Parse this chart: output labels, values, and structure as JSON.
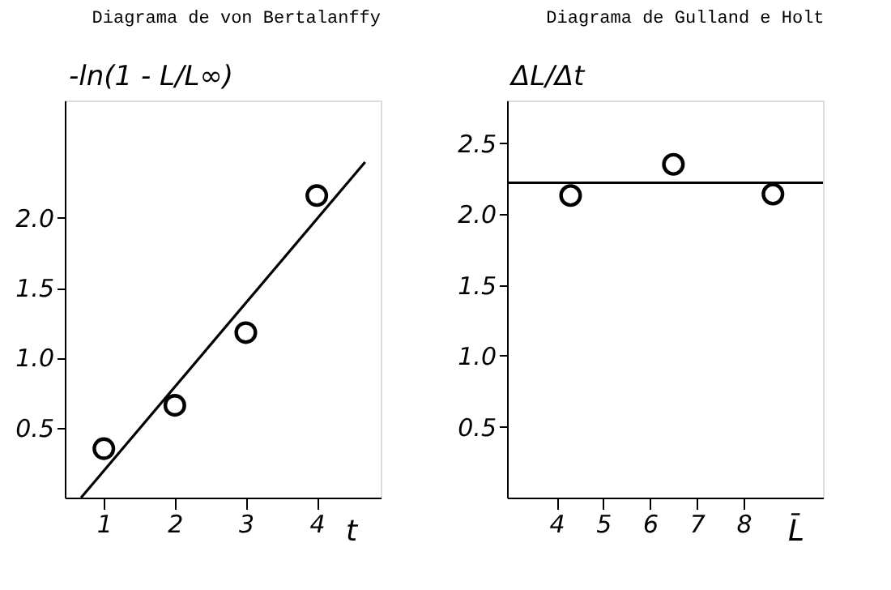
{
  "chart_data": [
    {
      "type": "scatter",
      "title": "Diagrama de von Bertalanffy",
      "xlabel": "t",
      "ylabel": "-ln(1 - L/L∞)",
      "xlim": [
        0.45,
        4.9
      ],
      "ylim": [
        0,
        2.84
      ],
      "xticks": [
        1,
        2,
        3,
        4
      ],
      "yticks": [
        {
          "value": 0.5,
          "label": "0.5"
        },
        {
          "value": 1.0,
          "label": "1.0"
        },
        {
          "value": 1.5,
          "label": "1.5"
        },
        {
          "value": 2.0,
          "label": "2.0"
        }
      ],
      "grid": false,
      "series": [
        {
          "color": "#000000",
          "marker": "circle",
          "x": [
            1,
            2,
            3,
            4
          ],
          "values": [
            0.35,
            0.66,
            1.18,
            2.16
          ]
        },
        {
          "type": "line",
          "color": "#000000",
          "marker": "none",
          "line_style": "solid",
          "x": [
            0.68,
            4.68
          ],
          "values": [
            0,
            2.4
          ]
        }
      ]
    },
    {
      "type": "scatter",
      "title": "Diagrama de Gulland e Holt",
      "xlabel": "L̄",
      "ylabel": "ΔL/Δt",
      "xlim": [
        2.94,
        9.7
      ],
      "ylim": [
        0,
        2.8
      ],
      "xticks": [
        4,
        5,
        6,
        7,
        8
      ],
      "yticks": [
        {
          "value": 0.5,
          "label": "0.5"
        },
        {
          "value": 1.0,
          "label": "1.0"
        },
        {
          "value": 1.5,
          "label": "1.5"
        },
        {
          "value": 2.0,
          "label": "2.0"
        },
        {
          "value": 2.5,
          "label": "2.5"
        }
      ],
      "grid": false,
      "series": [
        {
          "color": "#000000",
          "marker": "circle",
          "x": [
            4.3,
            6.5,
            8.63
          ],
          "values": [
            2.13,
            2.35,
            2.14
          ]
        },
        {
          "type": "line",
          "color": "#000000",
          "marker": "none",
          "line_style": "solid",
          "x": [
            2.94,
            9.7
          ],
          "values": [
            2.22,
            2.22
          ]
        }
      ]
    }
  ]
}
